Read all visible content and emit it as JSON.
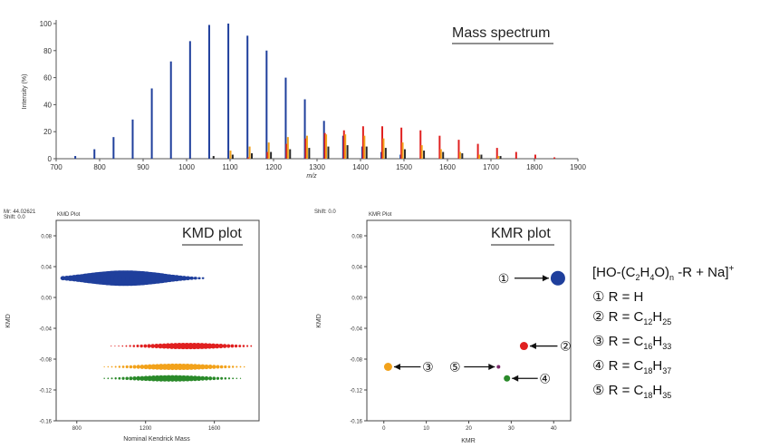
{
  "chart_data": [
    {
      "type": "bar",
      "title": "Mass spectrum",
      "xlabel": "m/z",
      "ylabel": "Intensity (%)",
      "xlim": [
        700,
        1900
      ],
      "ylim": [
        0,
        100
      ],
      "xticks": [
        "700",
        "800",
        "900",
        "1000",
        "1100",
        "1200",
        "1300",
        "1400",
        "1500",
        "1600",
        "1700",
        "1800",
        "1900"
      ],
      "yticks": [
        "0",
        "20",
        "40",
        "60",
        "80",
        "100"
      ],
      "series": [
        {
          "color": "#1f3f9c",
          "points": [
            [
              744,
              2
            ],
            [
              788,
              7
            ],
            [
              832,
              16
            ],
            [
              876,
              29
            ],
            [
              920,
              52
            ],
            [
              964,
              72
            ],
            [
              1008,
              87
            ],
            [
              1052,
              99
            ],
            [
              1096,
              100
            ],
            [
              1140,
              91
            ],
            [
              1184,
              80
            ],
            [
              1228,
              60
            ],
            [
              1272,
              44
            ],
            [
              1316,
              28
            ],
            [
              1360,
              17
            ],
            [
              1404,
              9
            ],
            [
              1448,
              5
            ],
            [
              1492,
              3
            ]
          ]
        },
        {
          "color": "#e02020",
          "points": [
            [
              1142,
              1
            ],
            [
              1186,
              5
            ],
            [
              1230,
              11
            ],
            [
              1274,
              15
            ],
            [
              1318,
              19
            ],
            [
              1362,
              21
            ],
            [
              1406,
              24
            ],
            [
              1450,
              24
            ],
            [
              1494,
              23
            ],
            [
              1538,
              21
            ],
            [
              1582,
              17
            ],
            [
              1626,
              14
            ],
            [
              1670,
              11
            ],
            [
              1714,
              8
            ],
            [
              1758,
              5
            ],
            [
              1802,
              3
            ],
            [
              1846,
              1
            ]
          ]
        },
        {
          "color": "#f2a21b",
          "points": [
            [
              1101,
              6
            ],
            [
              1145,
              9
            ],
            [
              1189,
              12
            ],
            [
              1233,
              16
            ],
            [
              1277,
              17
            ],
            [
              1321,
              18
            ],
            [
              1365,
              18
            ],
            [
              1409,
              17
            ],
            [
              1453,
              15
            ],
            [
              1497,
              12
            ],
            [
              1541,
              10
            ],
            [
              1585,
              7
            ],
            [
              1629,
              5
            ],
            [
              1673,
              3
            ],
            [
              1717,
              2
            ]
          ]
        },
        {
          "color": "#2a2a2a",
          "points": [
            [
              1062,
              2
            ],
            [
              1106,
              3
            ],
            [
              1150,
              4
            ],
            [
              1194,
              5
            ],
            [
              1238,
              7
            ],
            [
              1282,
              8
            ],
            [
              1326,
              9
            ],
            [
              1370,
              10
            ],
            [
              1414,
              9
            ],
            [
              1458,
              8
            ],
            [
              1502,
              7
            ],
            [
              1546,
              6
            ],
            [
              1590,
              5
            ],
            [
              1634,
              4
            ],
            [
              1678,
              3
            ],
            [
              1722,
              2
            ]
          ]
        }
      ]
    },
    {
      "type": "scatter",
      "title": "KMD plot",
      "panel_title": "KMD Plot",
      "header": [
        "Mr: 44.02621",
        "Shift: 0.0"
      ],
      "xlabel": "Nominal Kendrick Mass",
      "ylabel": "KMD",
      "xlim": [
        680,
        1860
      ],
      "ylim": [
        -0.16,
        0.1
      ],
      "xticks": [
        "800",
        "1200",
        "1600"
      ],
      "yticks": [
        "0.08",
        "0.04",
        "0.00",
        "-0.04",
        "-0.08",
        "-0.12",
        "-0.16"
      ],
      "series": [
        {
          "color": "#1f3f9c",
          "y": 0.025,
          "xrange": [
            720,
            1540
          ],
          "peak": 1080
        },
        {
          "color": "#e02020",
          "y": -0.063,
          "xrange": [
            1000,
            1820
          ],
          "peak": 1450
        },
        {
          "color": "#f2a21b",
          "y": -0.09,
          "xrange": [
            960,
            1780
          ],
          "peak": 1380
        },
        {
          "color": "#2a8a2a",
          "y": -0.105,
          "xrange": [
            960,
            1760
          ],
          "peak": 1350
        }
      ]
    },
    {
      "type": "scatter",
      "title": "KMR plot",
      "panel_title": "KMR Plot",
      "header": [
        "Shift: 0.0"
      ],
      "xlabel": "KMR",
      "ylabel": "KMD",
      "xlim": [
        -4,
        44
      ],
      "ylim": [
        -0.16,
        0.1
      ],
      "xticks": [
        "0",
        "10",
        "20",
        "30",
        "40"
      ],
      "yticks": [
        "0.08",
        "0.04",
        "0.00",
        "-0.04",
        "-0.08",
        "-0.12",
        "-0.16"
      ],
      "points": [
        {
          "x": 41,
          "y": 0.025,
          "color": "#1f3f9c",
          "size": 8,
          "label": "①"
        },
        {
          "x": 33,
          "y": -0.063,
          "color": "#e02020",
          "size": 4.5,
          "label": "②"
        },
        {
          "x": 1,
          "y": -0.09,
          "color": "#f2a21b",
          "size": 4.5,
          "label": "③"
        },
        {
          "x": 29,
          "y": -0.105,
          "color": "#2a8a2a",
          "size": 3.5,
          "label": "④"
        },
        {
          "x": 27,
          "y": -0.09,
          "color": "#7a2a6a",
          "size": 2,
          "label": "⑤"
        }
      ]
    }
  ],
  "legend": {
    "formula_parts": [
      "[HO-(C",
      "2",
      "H",
      "4",
      "O)",
      "n",
      " -R + Na]",
      "+"
    ],
    "rows": [
      [
        "① R = H"
      ],
      [
        "② R = C",
        "12",
        "H",
        "25"
      ],
      [
        "③ R = C",
        "16",
        "H",
        "33"
      ],
      [
        "④ R = C",
        "18",
        "H",
        "37"
      ],
      [
        "⑤ R = C",
        "18",
        "H",
        "35"
      ]
    ]
  }
}
